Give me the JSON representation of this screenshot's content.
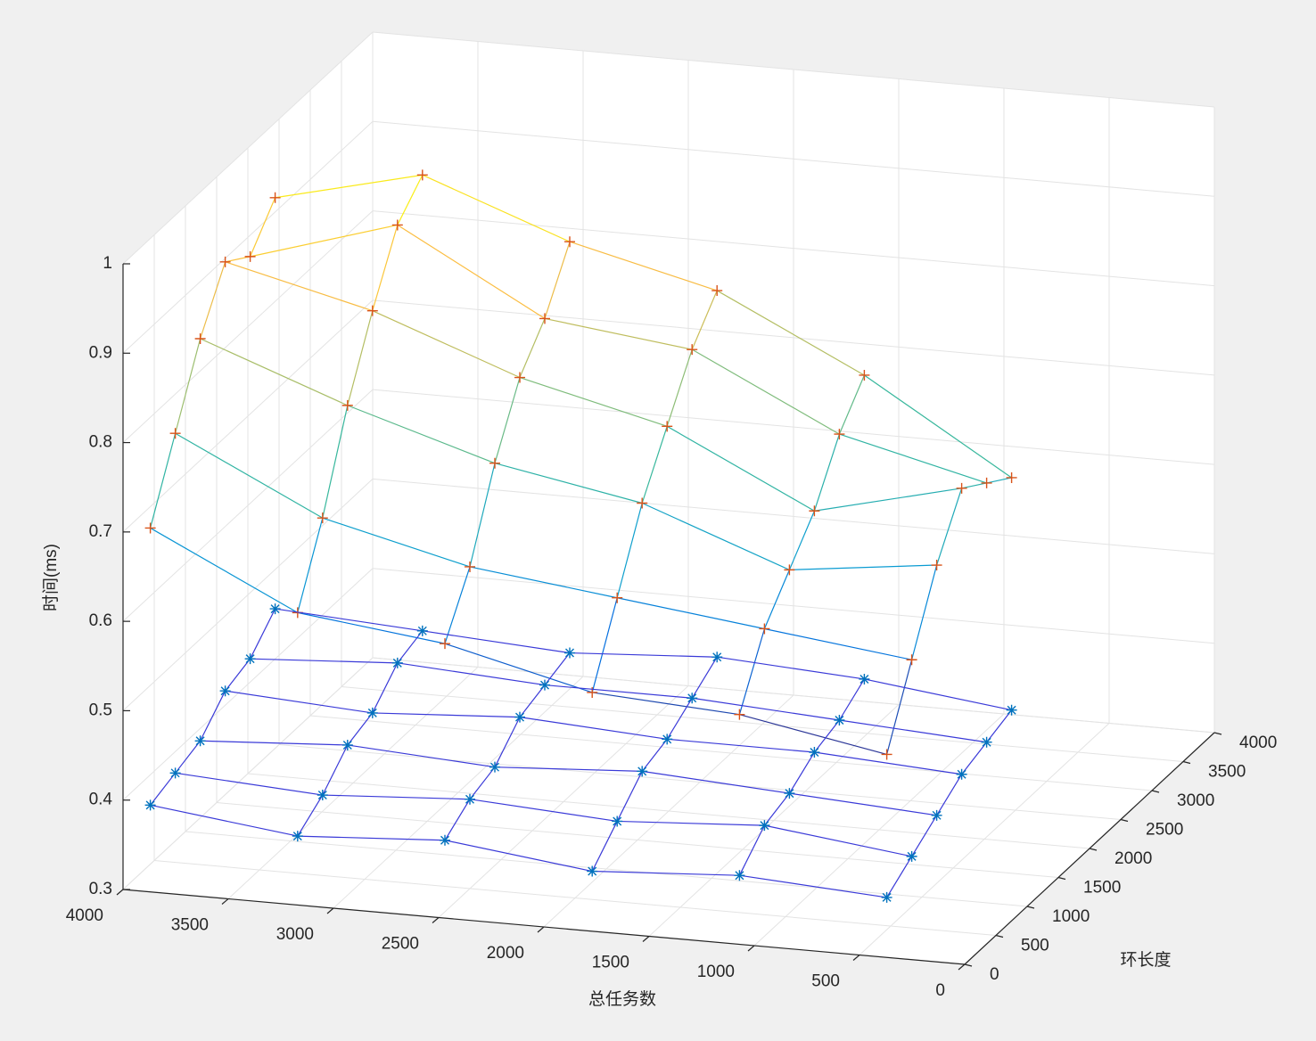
{
  "chart_data": {
    "type": "mesh3d",
    "xlabel": "总任务数",
    "ylabel": "环长度",
    "zlabel": "时间(ms)",
    "x": [
      400,
      1100,
      1800,
      2500,
      3200,
      3900
    ],
    "y": [
      100,
      500,
      900,
      1300,
      1700,
      2100
    ],
    "xlim": [
      0,
      4000
    ],
    "ylim": [
      0,
      4000
    ],
    "zlim": [
      0.3,
      1
    ],
    "xticks": [
      0,
      500,
      1000,
      1500,
      2000,
      2500,
      3000,
      3500,
      4000
    ],
    "yticks": [
      0,
      500,
      1000,
      1500,
      2000,
      2500,
      3000,
      3500,
      4000
    ],
    "zticks": [
      0.3,
      0.4,
      0.5,
      0.6,
      0.7,
      0.8,
      0.9,
      1
    ],
    "grid": true,
    "series": [
      {
        "marker": "+",
        "color": "#d95319",
        "colormap": "parula",
        "values": [
          [
            0.52,
            0.55,
            0.56,
            0.6,
            0.62,
            0.7
          ],
          [
            0.6,
            0.62,
            0.64,
            0.66,
            0.7,
            0.78
          ],
          [
            0.68,
            0.66,
            0.72,
            0.75,
            0.8,
            0.86
          ],
          [
            0.74,
            0.7,
            0.78,
            0.82,
            0.88,
            0.92
          ],
          [
            0.72,
            0.76,
            0.84,
            0.86,
            0.95,
            0.9
          ],
          [
            0.7,
            0.8,
            0.88,
            0.92,
            0.98,
            0.94
          ]
        ]
      },
      {
        "marker": "*",
        "color": "#0072bd",
        "edge_color": "#3a3ad8",
        "values": [
          [
            0.36,
            0.37,
            0.36,
            0.38,
            0.37,
            0.39
          ],
          [
            0.38,
            0.4,
            0.39,
            0.4,
            0.39,
            0.4
          ],
          [
            0.4,
            0.41,
            0.42,
            0.41,
            0.42,
            0.41
          ],
          [
            0.42,
            0.43,
            0.43,
            0.44,
            0.43,
            0.44
          ],
          [
            0.43,
            0.44,
            0.45,
            0.45,
            0.46,
            0.45
          ],
          [
            0.44,
            0.46,
            0.47,
            0.46,
            0.47,
            0.48
          ]
        ]
      }
    ]
  }
}
